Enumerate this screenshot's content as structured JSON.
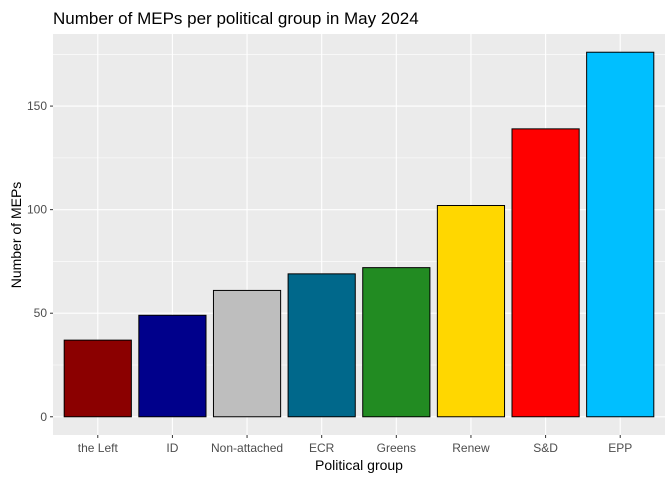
{
  "chart_data": {
    "type": "bar",
    "title": "Number of MEPs per political group in May 2024",
    "xlabel": "Political group",
    "ylabel": "Number of MEPs",
    "categories": [
      "the Left",
      "ID",
      "Non-attached",
      "ECR",
      "Greens",
      "Renew",
      "S&D",
      "EPP"
    ],
    "values": [
      37,
      49,
      61,
      69,
      72,
      102,
      139,
      176
    ],
    "colors": [
      "#8b0000",
      "#00008b",
      "#bebebe",
      "#00688b",
      "#228b22",
      "#ffd700",
      "#ff0000",
      "#00bfff"
    ],
    "yticks": [
      0,
      50,
      100,
      150
    ],
    "ylim": [
      -8.8,
      184.8
    ],
    "grid": true,
    "background": "#ebebeb",
    "gridColor": "#ffffff",
    "barBorder": "#000000"
  }
}
